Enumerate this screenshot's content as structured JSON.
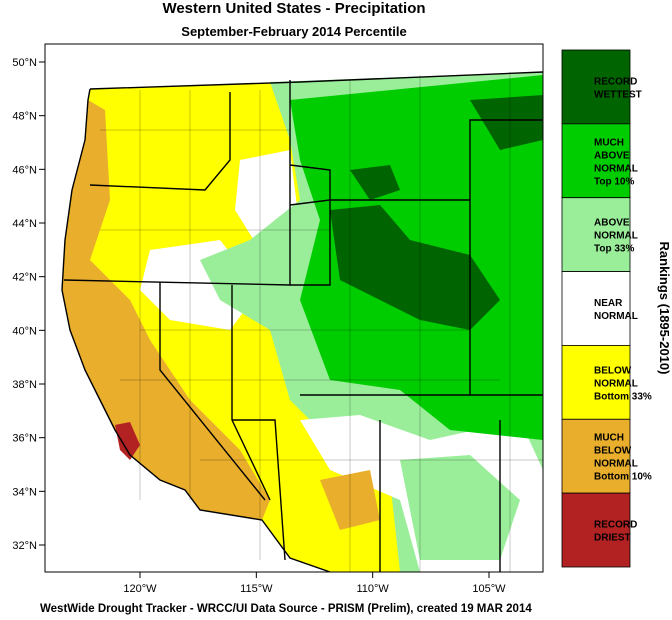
{
  "title": "Western United States - Precipitation",
  "subtitle": "September-February 2014 Percentile",
  "lat_ticks": [
    {
      "value": 50,
      "label": "50°N"
    },
    {
      "value": 48,
      "label": "48°N"
    },
    {
      "value": 46,
      "label": "46°N"
    },
    {
      "value": 44,
      "label": "44°N"
    },
    {
      "value": 42,
      "label": "42°N"
    },
    {
      "value": 40,
      "label": "40°N"
    },
    {
      "value": 38,
      "label": "38°N"
    },
    {
      "value": 36,
      "label": "36°N"
    },
    {
      "value": 34,
      "label": "34°N"
    },
    {
      "value": 32,
      "label": "32°N"
    }
  ],
  "lon_ticks": [
    {
      "value": -120,
      "label": "120°W"
    },
    {
      "value": -115,
      "label": "115°W"
    },
    {
      "value": -110,
      "label": "110°W"
    },
    {
      "value": -105,
      "label": "105°W"
    }
  ],
  "legend": {
    "title": "Rankings (1895-2010)",
    "items": [
      {
        "lines": [
          "RECORD",
          "WETTEST"
        ],
        "color": "#006400"
      },
      {
        "lines": [
          "MUCH",
          "ABOVE",
          "NORMAL",
          "Top 10%"
        ],
        "color": "#00cd00"
      },
      {
        "lines": [
          "ABOVE",
          "NORMAL",
          "Top 33%"
        ],
        "color": "#9aee9a"
      },
      {
        "lines": [
          "NEAR",
          "NORMAL"
        ],
        "color": "#ffffff"
      },
      {
        "lines": [
          "BELOW",
          "NORMAL",
          "Bottom 33%"
        ],
        "color": "#ffff00"
      },
      {
        "lines": [
          "MUCH",
          "BELOW",
          "NORMAL",
          "Bottom 10%"
        ],
        "color": "#e8ae2c"
      },
      {
        "lines": [
          "RECORD",
          "DRIEST"
        ],
        "color": "#b22222"
      }
    ]
  },
  "footer": "WestWide Drought Tracker - WRCC/UI  Data Source - PRISM (Prelim), created 19 MAR 2014"
}
